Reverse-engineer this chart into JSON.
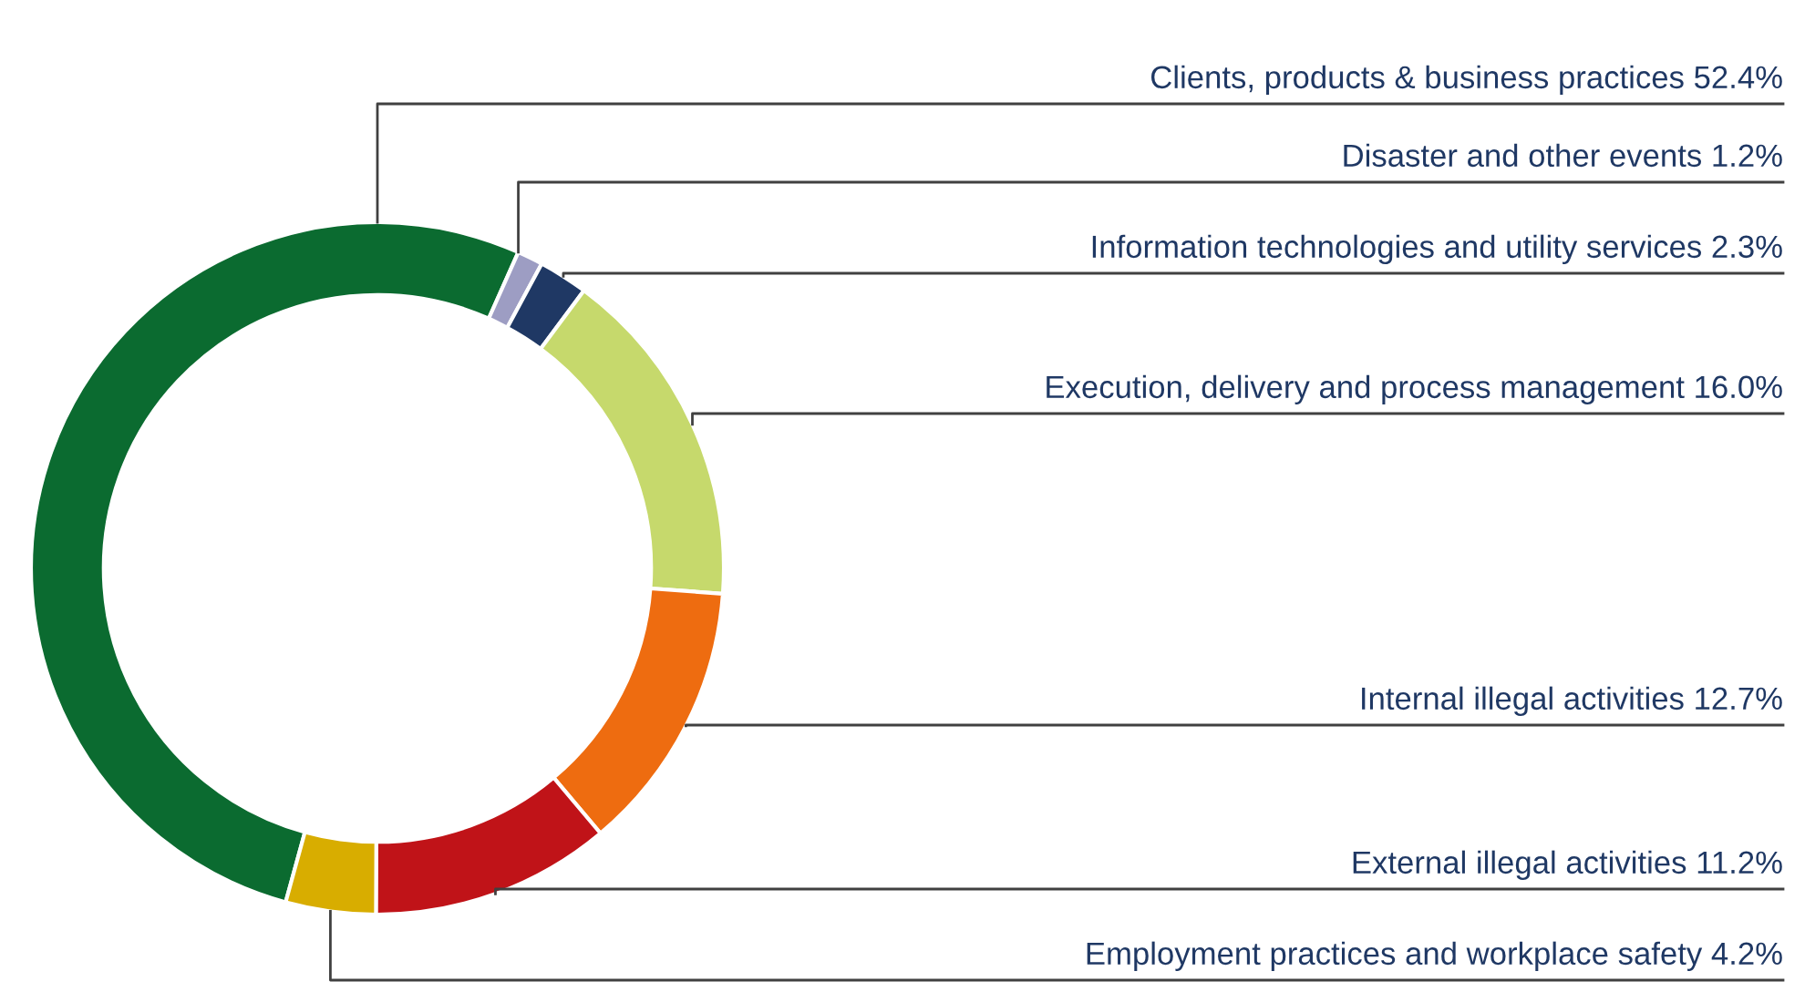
{
  "chart_data": {
    "type": "donut",
    "categories": [
      "Clients, products & business practices 52.4%",
      "Disaster and other events 1.2%",
      "Information technologies and utility services 2.3%",
      "Execution, delivery and process management 16.0%",
      "Internal illegal activities 12.7%",
      "External illegal activities 11.2%",
      "Employment practices and workplace safety 4.2%"
    ],
    "values": [
      52.4,
      1.2,
      2.3,
      16.0,
      12.7,
      11.2,
      4.2
    ],
    "colors": [
      "#0b6b30",
      "#9d9dc3",
      "#1f3864",
      "#c6d96c",
      "#ee6c10",
      "#c01318",
      "#d8ad00"
    ],
    "legend": false
  }
}
